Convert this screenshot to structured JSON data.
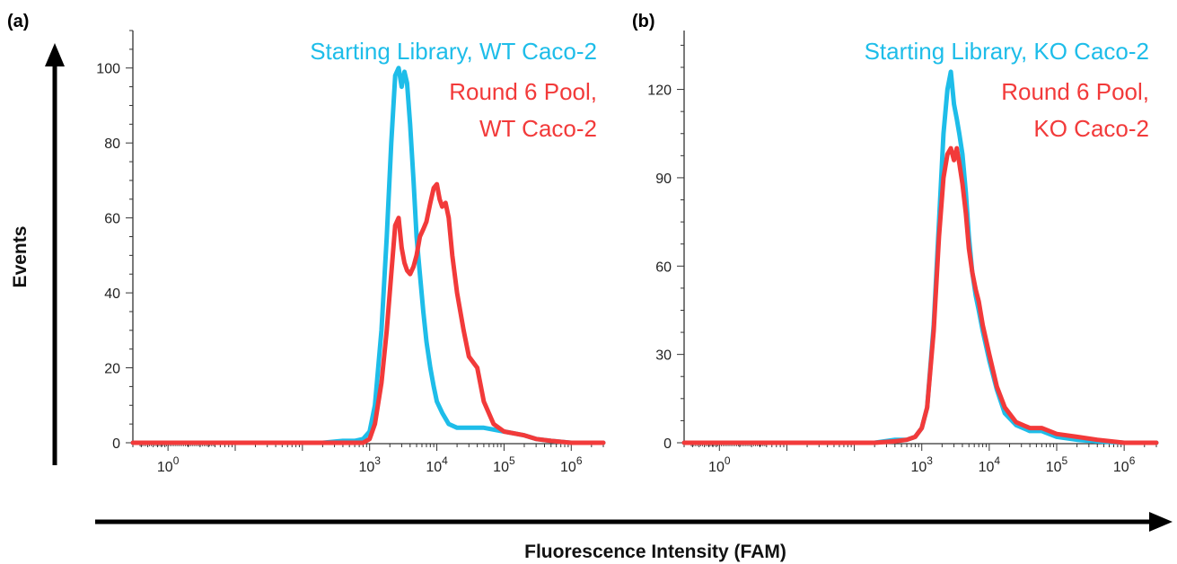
{
  "chart_data": [
    {
      "type": "line",
      "panel_label": "(a)",
      "title": "",
      "xlabel": "",
      "ylabel": "",
      "xscale": "log",
      "xlim": [
        0.3,
        3000000
      ],
      "ylim": [
        0,
        110
      ],
      "yticks": [
        0,
        20,
        40,
        60,
        80,
        100
      ],
      "xticks": [
        {
          "base": "10",
          "exp": "0",
          "value": 1
        },
        {
          "base": "10",
          "exp": "3",
          "value": 1000
        },
        {
          "base": "10",
          "exp": "4",
          "value": 10000
        },
        {
          "base": "10",
          "exp": "5",
          "value": 100000
        },
        {
          "base": "10",
          "exp": "6",
          "value": 1000000
        }
      ],
      "legend": [
        {
          "lines": [
            "Starting Library, WT Caco-2"
          ],
          "color": "#1ebde9",
          "position": "top-right"
        },
        {
          "lines": [
            "Round 6 Pool,",
            "WT Caco-2"
          ],
          "color": "#f23a3a",
          "position": "top-right"
        }
      ],
      "series": [
        {
          "name": "Starting Library, WT Caco-2",
          "color": "#1ebde9",
          "x": [
            0.3,
            100,
            200,
            400,
            600,
            800,
            1000,
            1200,
            1500,
            1800,
            2100,
            2400,
            2700,
            3000,
            3300,
            3600,
            4000,
            4500,
            5000,
            5600,
            6300,
            7000,
            8000,
            9000,
            10000,
            12000,
            15000,
            20000,
            30000,
            50000,
            100000,
            200000,
            300000,
            500000,
            1000000,
            3000000
          ],
          "y": [
            0,
            0,
            0,
            0.5,
            0.5,
            1,
            3,
            10,
            30,
            55,
            80,
            98,
            100,
            95,
            99,
            96,
            85,
            70,
            55,
            45,
            35,
            27,
            20,
            15,
            11,
            8,
            5,
            4,
            4,
            4,
            3,
            2,
            1,
            0.5,
            0,
            0
          ]
        },
        {
          "name": "Round 6 Pool, WT Caco-2",
          "color": "#f23a3a",
          "x": [
            0.3,
            100,
            200,
            400,
            600,
            800,
            1000,
            1200,
            1500,
            1800,
            2100,
            2400,
            2700,
            3000,
            3300,
            3600,
            4000,
            4500,
            5000,
            5600,
            6300,
            7000,
            8000,
            9000,
            10000,
            11000,
            12000,
            13500,
            15000,
            17000,
            20000,
            25000,
            30000,
            40000,
            50000,
            70000,
            100000,
            200000,
            300000,
            500000,
            1000000,
            3000000
          ],
          "y": [
            0,
            0,
            0,
            0,
            0,
            0,
            1,
            5,
            16,
            30,
            45,
            58,
            60,
            52,
            48,
            46,
            45,
            47,
            50,
            55,
            57,
            59,
            64,
            68,
            69,
            65,
            63,
            64,
            60,
            50,
            40,
            30,
            23,
            20,
            11,
            5,
            3,
            2,
            1,
            0.5,
            0,
            0
          ]
        }
      ]
    },
    {
      "type": "line",
      "panel_label": "(b)",
      "title": "",
      "xlabel": "",
      "ylabel": "",
      "xscale": "log",
      "xlim": [
        0.3,
        3000000
      ],
      "ylim": [
        0,
        140
      ],
      "yticks": [
        0,
        30,
        60,
        90,
        120
      ],
      "xticks": [
        {
          "base": "10",
          "exp": "0",
          "value": 1
        },
        {
          "base": "10",
          "exp": "3",
          "value": 1000
        },
        {
          "base": "10",
          "exp": "4",
          "value": 10000
        },
        {
          "base": "10",
          "exp": "5",
          "value": 100000
        },
        {
          "base": "10",
          "exp": "6",
          "value": 1000000
        }
      ],
      "legend": [
        {
          "lines": [
            "Starting Library, KO Caco-2"
          ],
          "color": "#1ebde9",
          "position": "top-right"
        },
        {
          "lines": [
            "Round 6 Pool,",
            "KO Caco-2"
          ],
          "color": "#f23a3a",
          "position": "top-right"
        }
      ],
      "series": [
        {
          "name": "Starting Library, KO Caco-2",
          "color": "#1ebde9",
          "x": [
            0.3,
            200,
            400,
            600,
            800,
            1000,
            1200,
            1500,
            1800,
            2100,
            2400,
            2700,
            3000,
            3300,
            3600,
            4000,
            4500,
            5000,
            5600,
            6300,
            7000,
            8000,
            10000,
            13000,
            17000,
            25000,
            40000,
            60000,
            100000,
            200000,
            400000,
            1000000,
            3000000
          ],
          "y": [
            0,
            0,
            1,
            1,
            2,
            5,
            12,
            40,
            75,
            105,
            120,
            126,
            115,
            110,
            105,
            98,
            85,
            70,
            58,
            50,
            45,
            38,
            28,
            18,
            10,
            6,
            4,
            4,
            2,
            1,
            0.5,
            0,
            0
          ]
        },
        {
          "name": "Round 6 Pool, KO Caco-2",
          "color": "#f23a3a",
          "x": [
            0.3,
            200,
            400,
            600,
            800,
            1000,
            1200,
            1500,
            1800,
            2100,
            2400,
            2700,
            3000,
            3300,
            3600,
            4000,
            4500,
            5000,
            5600,
            6300,
            7000,
            8000,
            10000,
            13000,
            17000,
            25000,
            40000,
            60000,
            100000,
            200000,
            400000,
            1000000,
            3000000
          ],
          "y": [
            0,
            0,
            0.5,
            1,
            2,
            5,
            12,
            38,
            70,
            90,
            98,
            100,
            96,
            100,
            95,
            88,
            78,
            66,
            58,
            52,
            48,
            40,
            30,
            19,
            12,
            7,
            5,
            5,
            3,
            2,
            1,
            0,
            0
          ]
        }
      ]
    }
  ],
  "axes_labels": {
    "y": "Events",
    "x": "Fluorescence Intensity (FAM)"
  }
}
